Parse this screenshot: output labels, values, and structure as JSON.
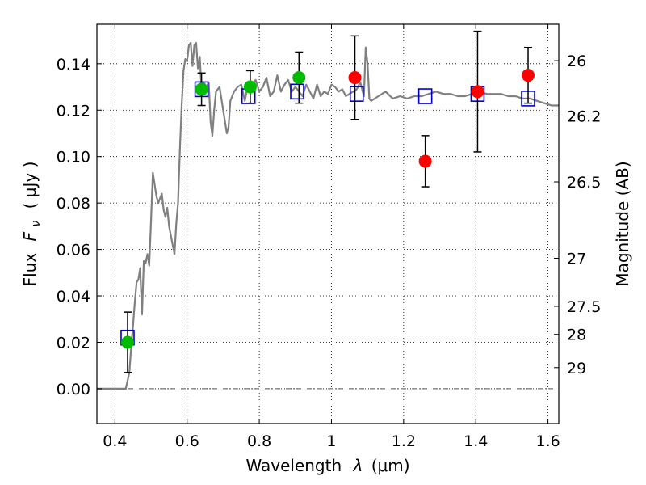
{
  "chart_data": {
    "type": "scatter",
    "xlabel_prefix": "Wavelength",
    "xlabel_symbol": "λ",
    "xlabel_unit": "(μm)",
    "ylabel_prefix": "Flux",
    "ylabel_symbol": "F",
    "ylabel_subscript": "ν",
    "ylabel_unit": "( μJy )",
    "y2label": "Magnitude (AB)",
    "xlim": [
      0.35,
      1.63
    ],
    "ylim": [
      -0.015,
      0.157
    ],
    "xticks": [
      0.4,
      0.6,
      0.8,
      1.0,
      1.2,
      1.4,
      1.6
    ],
    "xtick_labels": [
      "0.4",
      "0.6",
      "0.8",
      "1",
      "1.2",
      "1.4",
      "1.6"
    ],
    "yticks": [
      0.0,
      0.02,
      0.04,
      0.06,
      0.08,
      0.1,
      0.12,
      0.14
    ],
    "ytick_labels": [
      "0.00",
      "0.02",
      "0.04",
      "0.06",
      "0.08",
      "0.10",
      "0.12",
      "0.14"
    ],
    "y2ticks": [
      {
        "flux": 0.1413,
        "label": "26"
      },
      {
        "flux": 0.1175,
        "label": "26.2"
      },
      {
        "flux": 0.0891,
        "label": "26.5"
      },
      {
        "flux": 0.0562,
        "label": "27"
      },
      {
        "flux": 0.0355,
        "label": "27.5"
      },
      {
        "flux": 0.0234,
        "label": "28"
      },
      {
        "flux": 0.0091,
        "label": "29"
      }
    ],
    "grid": true,
    "colors": {
      "sed_line": "#808080",
      "model_square": "#0000cc",
      "observed_green": "#00bb00",
      "observed_red": "#ff0000",
      "errorbar": "#000000",
      "zero_line": "#555555"
    },
    "series": [
      {
        "kind": "line",
        "x": [
          0.35,
          0.43,
          0.44,
          0.445,
          0.45,
          0.455,
          0.46,
          0.465,
          0.47,
          0.475,
          0.48,
          0.485,
          0.49,
          0.495,
          0.5,
          0.505,
          0.51,
          0.515,
          0.52,
          0.525,
          0.53,
          0.535,
          0.54,
          0.545,
          0.55,
          0.555,
          0.56,
          0.565,
          0.57,
          0.575,
          0.58,
          0.585,
          0.59,
          0.595,
          0.6,
          0.605,
          0.61,
          0.615,
          0.62,
          0.625,
          0.63,
          0.635,
          0.64,
          0.645,
          0.65,
          0.655,
          0.66,
          0.665,
          0.67,
          0.675,
          0.68,
          0.69,
          0.7,
          0.71,
          0.715,
          0.72,
          0.73,
          0.74,
          0.75,
          0.76,
          0.77,
          0.78,
          0.79,
          0.8,
          0.81,
          0.82,
          0.83,
          0.84,
          0.85,
          0.86,
          0.87,
          0.88,
          0.89,
          0.9,
          0.91,
          0.92,
          0.93,
          0.94,
          0.95,
          0.96,
          0.97,
          0.98,
          0.99,
          1.0,
          1.01,
          1.02,
          1.03,
          1.04,
          1.05,
          1.06,
          1.07,
          1.08,
          1.09,
          1.095,
          1.1,
          1.105,
          1.11,
          1.13,
          1.15,
          1.17,
          1.19,
          1.21,
          1.23,
          1.25,
          1.27,
          1.29,
          1.31,
          1.33,
          1.35,
          1.37,
          1.39,
          1.41,
          1.43,
          1.45,
          1.47,
          1.49,
          1.51,
          1.53,
          1.55,
          1.57,
          1.59,
          1.61,
          1.63
        ],
        "y": [
          0.0,
          0.0,
          0.007,
          0.018,
          0.027,
          0.037,
          0.046,
          0.047,
          0.052,
          0.032,
          0.055,
          0.054,
          0.058,
          0.053,
          0.072,
          0.093,
          0.088,
          0.083,
          0.08,
          0.082,
          0.084,
          0.077,
          0.074,
          0.078,
          0.07,
          0.066,
          0.062,
          0.058,
          0.071,
          0.08,
          0.103,
          0.122,
          0.137,
          0.142,
          0.141,
          0.148,
          0.149,
          0.139,
          0.148,
          0.149,
          0.138,
          0.143,
          0.129,
          0.132,
          0.131,
          0.13,
          0.132,
          0.115,
          0.109,
          0.12,
          0.128,
          0.13,
          0.12,
          0.11,
          0.113,
          0.124,
          0.128,
          0.13,
          0.131,
          0.124,
          0.132,
          0.131,
          0.133,
          0.128,
          0.13,
          0.134,
          0.126,
          0.128,
          0.135,
          0.128,
          0.131,
          0.133,
          0.128,
          0.13,
          0.128,
          0.126,
          0.131,
          0.128,
          0.125,
          0.131,
          0.126,
          0.128,
          0.127,
          0.131,
          0.13,
          0.128,
          0.129,
          0.126,
          0.127,
          0.128,
          0.129,
          0.132,
          0.126,
          0.147,
          0.14,
          0.125,
          0.124,
          0.126,
          0.128,
          0.125,
          0.126,
          0.125,
          0.126,
          0.126,
          0.127,
          0.128,
          0.127,
          0.127,
          0.126,
          0.126,
          0.127,
          0.128,
          0.127,
          0.127,
          0.127,
          0.126,
          0.126,
          0.125,
          0.125,
          0.124,
          0.123,
          0.122,
          0.122
        ]
      },
      {
        "kind": "open_square",
        "x": [
          0.435,
          0.64,
          0.77,
          0.905,
          1.07,
          1.26,
          1.405,
          1.545
        ],
        "y": [
          0.022,
          0.129,
          0.126,
          0.128,
          0.127,
          0.126,
          0.127,
          0.125
        ]
      },
      {
        "kind": "filled_circle_green",
        "x": [
          0.435,
          0.64,
          0.775,
          0.91
        ],
        "y": [
          0.02,
          0.129,
          0.13,
          0.134
        ],
        "yerr": [
          0.013,
          0.007,
          0.007,
          0.011
        ]
      },
      {
        "kind": "filled_circle_red",
        "x": [
          1.065,
          1.26,
          1.405,
          1.545
        ],
        "y": [
          0.134,
          0.098,
          0.128,
          0.135
        ],
        "yerr": [
          0.018,
          0.011,
          0.026,
          0.012
        ]
      }
    ]
  }
}
